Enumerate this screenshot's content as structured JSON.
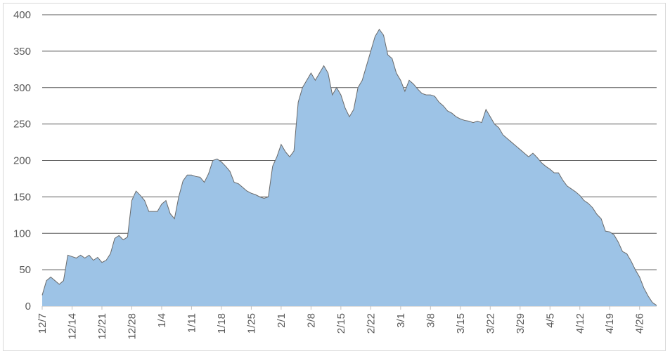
{
  "chart_data": {
    "type": "area",
    "title": "",
    "xlabel": "",
    "ylabel": "",
    "ylim": [
      0,
      400
    ],
    "yticks": [
      0,
      50,
      100,
      150,
      200,
      250,
      300,
      350,
      400
    ],
    "grid": true,
    "legend": "none",
    "x_tick_labels": [
      "12/7",
      "12/14",
      "12/21",
      "12/28",
      "1/4",
      "1/11",
      "1/18",
      "1/25",
      "2/1",
      "2/8",
      "2/15",
      "2/22",
      "3/1",
      "3/8",
      "3/15",
      "3/22",
      "3/29",
      "4/5",
      "4/12",
      "4/19",
      "4/26"
    ],
    "x_tick_step_days": 7,
    "x_start_label": "12/7",
    "values": [
      15,
      35,
      40,
      35,
      30,
      35,
      70,
      68,
      66,
      70,
      66,
      70,
      63,
      67,
      60,
      63,
      72,
      93,
      97,
      91,
      95,
      145,
      158,
      152,
      145,
      130,
      130,
      130,
      140,
      145,
      127,
      120,
      150,
      172,
      180,
      180,
      178,
      177,
      170,
      182,
      200,
      202,
      198,
      192,
      185,
      170,
      168,
      163,
      158,
      155,
      153,
      150,
      148,
      150,
      192,
      205,
      222,
      212,
      205,
      213,
      280,
      300,
      310,
      320,
      310,
      320,
      330,
      320,
      290,
      300,
      290,
      272,
      260,
      270,
      300,
      310,
      330,
      350,
      370,
      380,
      372,
      345,
      340,
      320,
      310,
      295,
      310,
      305,
      298,
      292,
      290,
      290,
      288,
      280,
      275,
      268,
      265,
      260,
      257,
      255,
      254,
      252,
      254,
      252,
      270,
      260,
      250,
      245,
      235,
      230,
      225,
      220,
      215,
      210,
      205,
      210,
      204,
      197,
      192,
      188,
      183,
      183,
      173,
      165,
      161,
      157,
      152,
      145,
      141,
      135,
      126,
      120,
      103,
      102,
      98,
      88,
      75,
      72,
      62,
      50,
      40,
      25,
      14,
      5,
      1
    ],
    "fill_color": "#9dc3e6",
    "line_color": "#6a6a6a",
    "grid_color": "#595959"
  }
}
